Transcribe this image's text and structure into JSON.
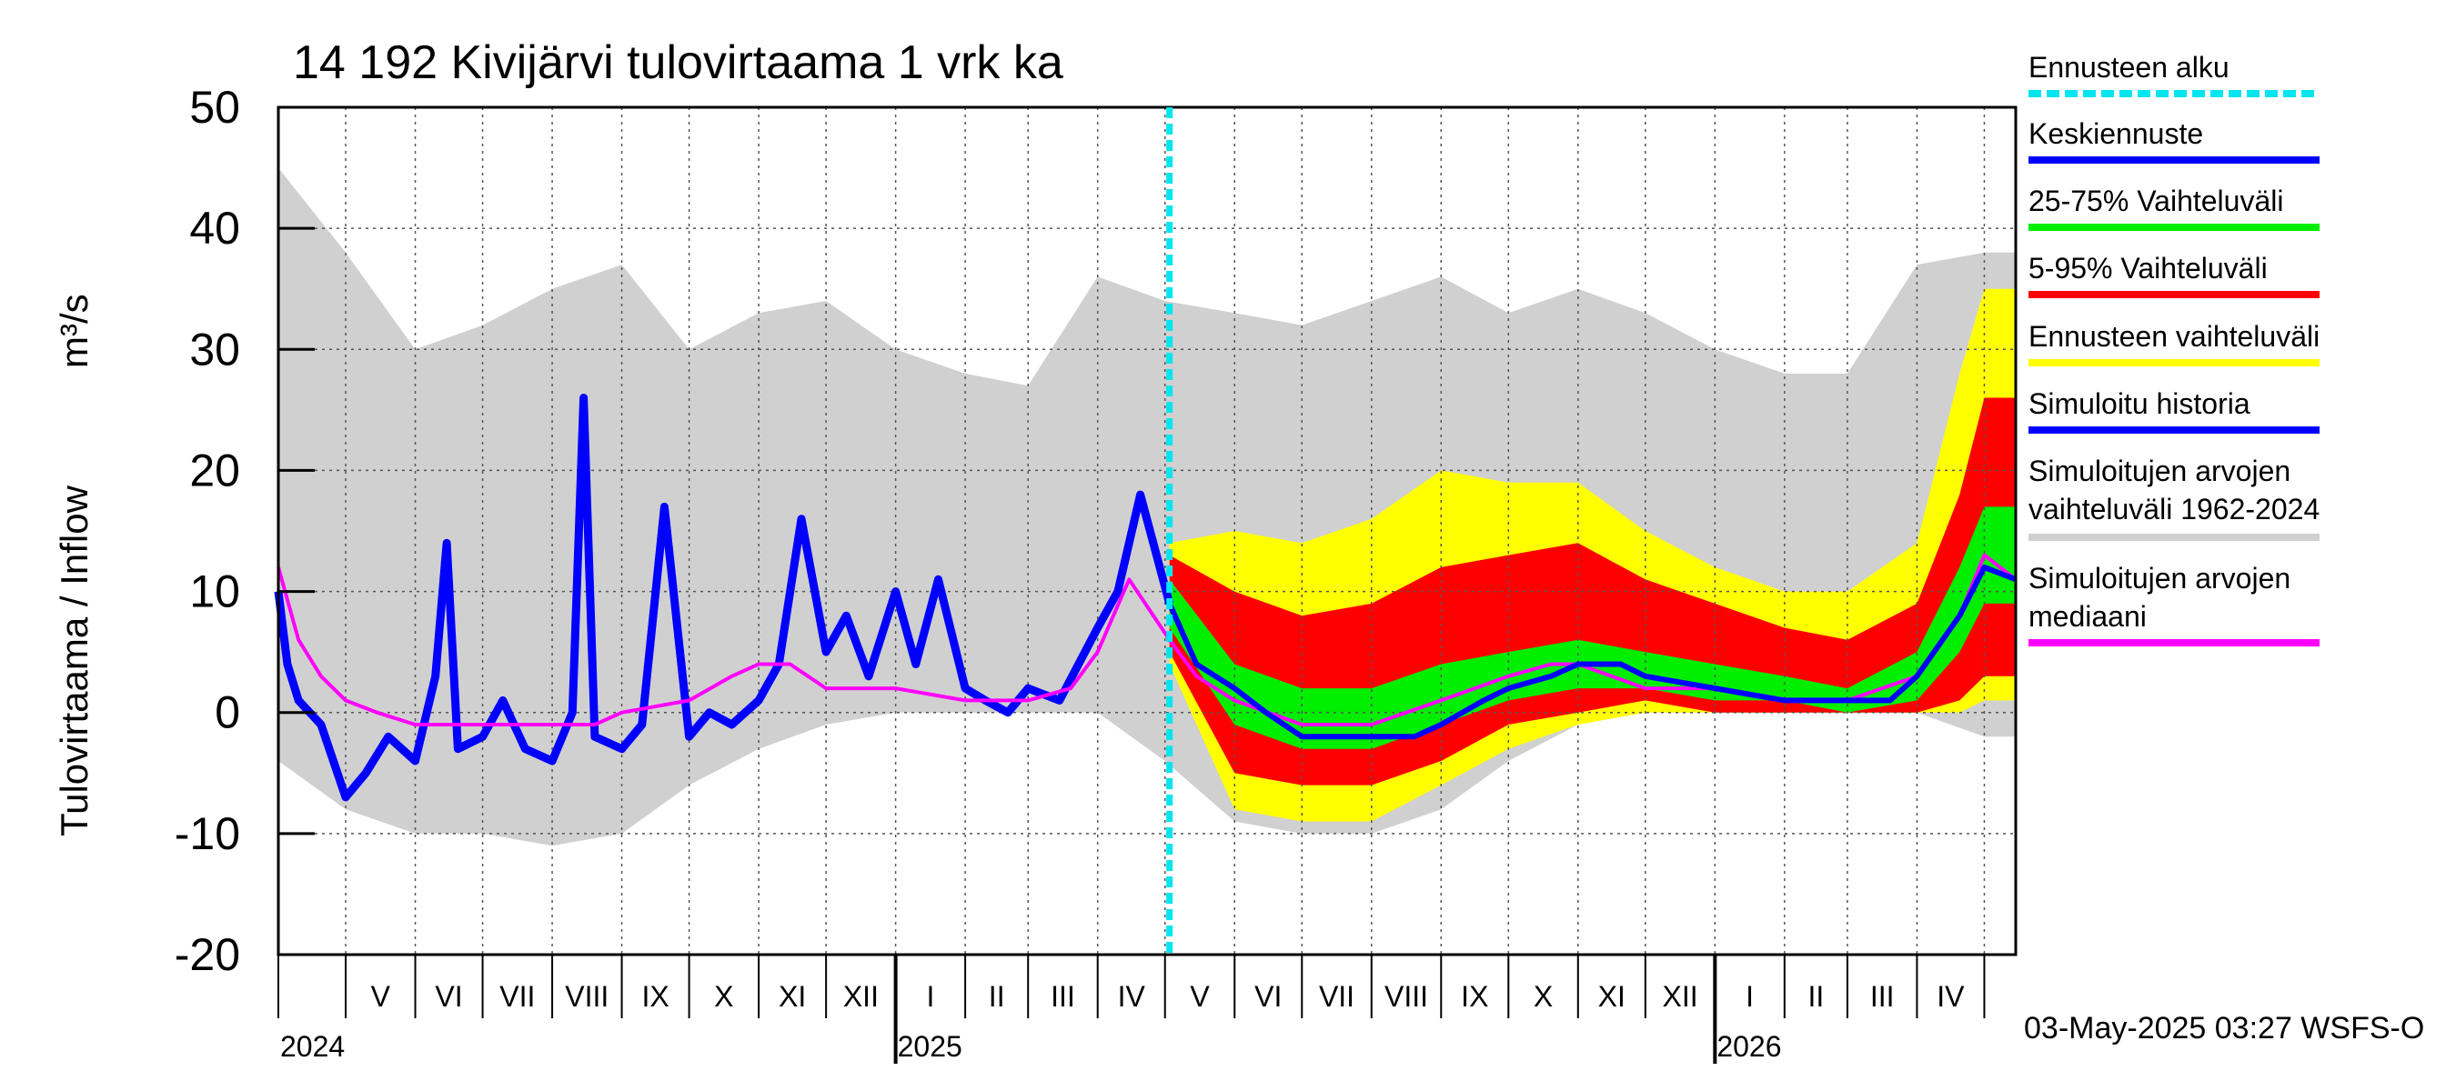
{
  "chart_data": {
    "type": "area",
    "title": "14 192 Kivijärvi tulovirtaama 1 vrk ka",
    "ylabel": "Tulovirtaama / Inflow",
    "yunit": "m³/s",
    "ylim": [
      -20,
      50
    ],
    "yticks": [
      "-20",
      "-10",
      "0",
      "10",
      "20",
      "30",
      "40",
      "50"
    ],
    "x_range": [
      "2024-04-01",
      "2026-05-15"
    ],
    "forecast_start": "2025-05-03",
    "grid": true,
    "legend_position": "right",
    "month_labels": [
      {
        "label": "V",
        "month": "2024-05"
      },
      {
        "label": "VI",
        "month": "2024-06"
      },
      {
        "label": "VII",
        "month": "2024-07"
      },
      {
        "label": "VIII",
        "month": "2024-08"
      },
      {
        "label": "IX",
        "month": "2024-09"
      },
      {
        "label": "X",
        "month": "2024-10"
      },
      {
        "label": "XI",
        "month": "2024-11"
      },
      {
        "label": "XII",
        "month": "2024-12"
      },
      {
        "label": "I",
        "month": "2025-01"
      },
      {
        "label": "II",
        "month": "2025-02"
      },
      {
        "label": "III",
        "month": "2025-03"
      },
      {
        "label": "IV",
        "month": "2025-04"
      },
      {
        "label": "V",
        "month": "2025-05"
      },
      {
        "label": "VI",
        "month": "2025-06"
      },
      {
        "label": "VII",
        "month": "2025-07"
      },
      {
        "label": "VIII",
        "month": "2025-08"
      },
      {
        "label": "IX",
        "month": "2025-09"
      },
      {
        "label": "X",
        "month": "2025-10"
      },
      {
        "label": "XI",
        "month": "2025-11"
      },
      {
        "label": "XII",
        "month": "2025-12"
      },
      {
        "label": "I",
        "month": "2026-01"
      },
      {
        "label": "II",
        "month": "2026-02"
      },
      {
        "label": "III",
        "month": "2026-03"
      },
      {
        "label": "IV",
        "month": "2026-04"
      }
    ],
    "year_labels": [
      {
        "label": "2024",
        "date": "2024-04-01"
      },
      {
        "label": "2025",
        "date": "2025-01-01"
      },
      {
        "label": "2026",
        "date": "2026-01-01"
      }
    ],
    "legend": [
      {
        "label": "Ennusteen alku",
        "color": "#00e5f0",
        "style": "dashed"
      },
      {
        "label": "Keskiennuste",
        "color": "#0000ff",
        "style": "solid"
      },
      {
        "label": "25-75% Vaihteluväli",
        "color": "#00ee00",
        "style": "solid"
      },
      {
        "label": "5-95% Vaihteluväli",
        "color": "#ff0000",
        "style": "solid"
      },
      {
        "label": "Ennusteen vaihteluväli",
        "color": "#ffff00",
        "style": "solid"
      },
      {
        "label": "Simuloitu historia",
        "color": "#0000ff",
        "style": "solid"
      },
      {
        "label": "Simuloitujen arvojen vaihteluväli 1962-2024",
        "line1": "Simuloitujen arvojen",
        "line2": "vaihteluväli 1962-2024",
        "color": "#d0d0d0",
        "style": "solid"
      },
      {
        "label": "Simuloitujen arvojen mediaani",
        "line1": "Simuloitujen arvojen",
        "line2": "mediaani",
        "color": "#ff00ff",
        "style": "solid"
      }
    ],
    "footer": "03-May-2025 03:27 WSFS-O",
    "series": [
      {
        "name": "Simuloitu historia",
        "color": "#0000ff",
        "x": [
          "2024-04-01",
          "2024-04-05",
          "2024-04-10",
          "2024-04-20",
          "2024-05-01",
          "2024-05-10",
          "2024-05-20",
          "2024-06-01",
          "2024-06-10",
          "2024-06-15",
          "2024-06-20",
          "2024-07-01",
          "2024-07-10",
          "2024-07-20",
          "2024-08-01",
          "2024-08-10",
          "2024-08-15",
          "2024-08-20",
          "2024-09-01",
          "2024-09-10",
          "2024-09-20",
          "2024-10-01",
          "2024-10-10",
          "2024-10-20",
          "2024-11-01",
          "2024-11-10",
          "2024-11-20",
          "2024-12-01",
          "2024-12-10",
          "2024-12-20",
          "2025-01-01",
          "2025-01-10",
          "2025-01-20",
          "2025-02-01",
          "2025-02-10",
          "2025-02-20",
          "2025-03-01",
          "2025-03-15",
          "2025-04-01",
          "2025-04-10",
          "2025-04-20",
          "2025-05-03"
        ],
        "y": [
          10,
          4,
          1,
          -1,
          -7,
          -5,
          -2,
          -4,
          3,
          14,
          -3,
          -2,
          1,
          -3,
          -4,
          0,
          26,
          -2,
          -3,
          -1,
          17,
          -2,
          0,
          -1,
          1,
          4,
          16,
          5,
          8,
          3,
          10,
          4,
          11,
          2,
          1,
          0,
          2,
          1,
          7,
          10,
          18,
          9
        ]
      },
      {
        "name": "Simuloitujen arvojen mediaani",
        "color": "#ff00ff",
        "x": [
          "2024-04-01",
          "2024-04-10",
          "2024-04-20",
          "2024-05-01",
          "2024-05-15",
          "2024-06-01",
          "2024-07-01",
          "2024-08-01",
          "2024-08-20",
          "2024-09-01",
          "2024-10-01",
          "2024-10-20",
          "2024-11-01",
          "2024-11-15",
          "2024-12-01",
          "2025-01-01",
          "2025-02-01",
          "2025-03-01",
          "2025-03-20",
          "2025-04-01",
          "2025-04-15",
          "2025-05-03",
          "2025-05-15",
          "2025-06-01",
          "2025-07-01",
          "2025-08-01",
          "2025-09-01",
          "2025-10-01",
          "2025-10-20",
          "2025-11-01",
          "2025-12-01",
          "2026-01-01",
          "2026-02-01",
          "2026-03-01",
          "2026-04-01",
          "2026-04-20",
          "2026-05-01",
          "2026-05-15"
        ],
        "y": [
          12,
          6,
          3,
          1,
          0,
          -1,
          -1,
          -1,
          -1,
          0,
          1,
          3,
          4,
          4,
          2,
          2,
          1,
          1,
          2,
          5,
          11,
          6,
          3,
          1,
          -1,
          -1,
          1,
          3,
          4,
          4,
          2,
          2,
          1,
          1,
          3,
          8,
          13,
          11
        ]
      },
      {
        "name": "Keskiennuste",
        "color": "#0000ff",
        "x": [
          "2025-05-03",
          "2025-05-15",
          "2025-06-01",
          "2025-06-15",
          "2025-07-01",
          "2025-08-01",
          "2025-08-20",
          "2025-09-01",
          "2025-09-20",
          "2025-10-01",
          "2025-10-20",
          "2025-11-01",
          "2025-11-20",
          "2025-12-01",
          "2026-01-01",
          "2026-02-01",
          "2026-03-01",
          "2026-03-20",
          "2026-04-01",
          "2026-04-20",
          "2026-05-01",
          "2026-05-15"
        ],
        "y": [
          9,
          4,
          2,
          0,
          -2,
          -2,
          -2,
          -1,
          1,
          2,
          3,
          4,
          4,
          3,
          2,
          1,
          1,
          1,
          3,
          8,
          12,
          11
        ]
      },
      {
        "name": "25-75% Vaihteluväli",
        "color": "#00ee00",
        "x": [
          "2025-05-03",
          "2025-06-01",
          "2025-07-01",
          "2025-08-01",
          "2025-09-01",
          "2025-10-01",
          "2025-11-01",
          "2025-12-01",
          "2026-01-01",
          "2026-02-01",
          "2026-03-01",
          "2026-04-01",
          "2026-04-20",
          "2026-05-01",
          "2026-05-15"
        ],
        "lower": [
          7,
          -1,
          -3,
          -3,
          -1,
          1,
          2,
          2,
          1,
          1,
          0,
          1,
          5,
          9,
          9
        ],
        "upper": [
          11,
          4,
          2,
          2,
          4,
          5,
          6,
          5,
          4,
          3,
          2,
          5,
          12,
          17,
          17
        ]
      },
      {
        "name": "5-95% Vaihteluväli",
        "color": "#ff0000",
        "x": [
          "2025-05-03",
          "2025-06-01",
          "2025-07-01",
          "2025-08-01",
          "2025-09-01",
          "2025-10-01",
          "2025-11-01",
          "2025-12-01",
          "2026-01-01",
          "2026-02-01",
          "2026-03-01",
          "2026-04-01",
          "2026-04-20",
          "2026-05-01",
          "2026-05-15"
        ],
        "lower": [
          5,
          -5,
          -6,
          -6,
          -4,
          -1,
          0,
          1,
          0,
          0,
          0,
          0,
          1,
          3,
          3
        ],
        "upper": [
          13,
          10,
          8,
          9,
          12,
          13,
          14,
          11,
          9,
          7,
          6,
          9,
          18,
          26,
          26
        ]
      },
      {
        "name": "Ennusteen vaihteluväli",
        "color": "#ffff00",
        "x": [
          "2025-05-03",
          "2025-06-01",
          "2025-07-01",
          "2025-08-01",
          "2025-09-01",
          "2025-10-01",
          "2025-11-01",
          "2025-12-01",
          "2026-01-01",
          "2026-02-01",
          "2026-03-01",
          "2026-04-01",
          "2026-04-20",
          "2026-05-01",
          "2026-05-15"
        ],
        "lower": [
          4,
          -8,
          -9,
          -9,
          -6,
          -3,
          -1,
          0,
          0,
          0,
          0,
          0,
          0,
          1,
          1
        ],
        "upper": [
          14,
          15,
          14,
          16,
          20,
          19,
          19,
          15,
          12,
          10,
          10,
          14,
          28,
          35,
          35
        ]
      },
      {
        "name": "Simuloitujen arvojen vaihteluväli 1962-2024",
        "color": "#d0d0d0",
        "x": [
          "2024-04-01",
          "2024-05-01",
          "2024-06-01",
          "2024-07-01",
          "2024-08-01",
          "2024-09-01",
          "2024-10-01",
          "2024-11-01",
          "2024-12-01",
          "2025-01-01",
          "2025-02-01",
          "2025-03-01",
          "2025-04-01",
          "2025-05-01",
          "2025-06-01",
          "2025-07-01",
          "2025-08-01",
          "2025-09-01",
          "2025-10-01",
          "2025-11-01",
          "2025-12-01",
          "2026-01-01",
          "2026-02-01",
          "2026-03-01",
          "2026-04-01",
          "2026-05-01",
          "2026-05-15"
        ],
        "lower": [
          -4,
          -8,
          -10,
          -10,
          -11,
          -10,
          -6,
          -3,
          -1,
          0,
          0,
          0,
          0,
          -4,
          -9,
          -10,
          -10,
          -8,
          -4,
          -1,
          0,
          0,
          0,
          0,
          0,
          -2,
          -2
        ],
        "upper": [
          45,
          38,
          30,
          32,
          35,
          37,
          30,
          33,
          34,
          30,
          28,
          27,
          36,
          34,
          33,
          32,
          34,
          36,
          33,
          35,
          33,
          30,
          28,
          28,
          37,
          38,
          38
        ]
      }
    ]
  }
}
